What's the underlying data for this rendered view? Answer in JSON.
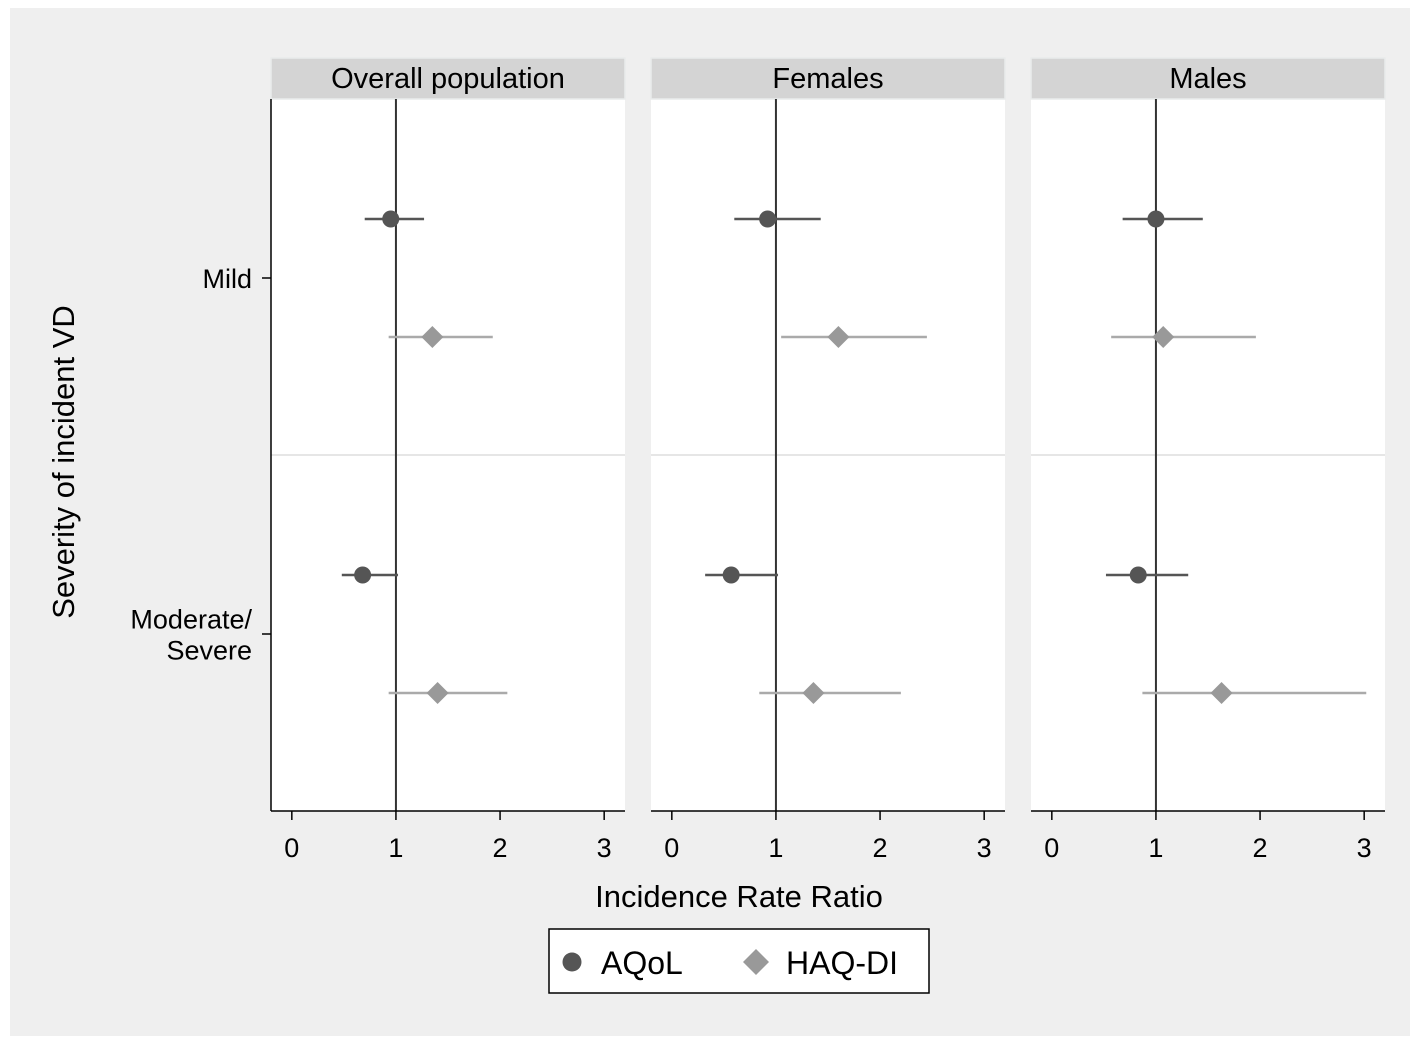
{
  "chart_data": {
    "type": "scatter",
    "subtype": "forest-plot",
    "xlabel": "Incidence Rate Ratio",
    "ylabel": "Severity of incident VD",
    "xlim": [
      -0.2,
      3.2
    ],
    "xticks": [
      "0",
      "1",
      "2",
      "3"
    ],
    "reference_line": 1,
    "categories": [
      "Mild",
      "Moderate/ Severe"
    ],
    "legend": {
      "position": "bottom",
      "items": [
        {
          "name": "AQoL",
          "marker": "circle",
          "color": "#555555"
        },
        {
          "name": "HAQ-DI",
          "marker": "diamond",
          "color": "#999999"
        }
      ]
    },
    "panels": [
      {
        "title": "Overall population",
        "points": [
          {
            "category": "Mild",
            "series": "AQoL",
            "est": 0.95,
            "lo": 0.7,
            "hi": 1.27
          },
          {
            "category": "Mild",
            "series": "HAQ-DI",
            "est": 1.35,
            "lo": 0.93,
            "hi": 1.93
          },
          {
            "category": "Moderate/ Severe",
            "series": "AQoL",
            "est": 0.68,
            "lo": 0.48,
            "hi": 1.02
          },
          {
            "category": "Moderate/ Severe",
            "series": "HAQ-DI",
            "est": 1.4,
            "lo": 0.93,
            "hi": 2.07
          }
        ]
      },
      {
        "title": "Females",
        "points": [
          {
            "category": "Mild",
            "series": "AQoL",
            "est": 0.92,
            "lo": 0.6,
            "hi": 1.43
          },
          {
            "category": "Mild",
            "series": "HAQ-DI",
            "est": 1.6,
            "lo": 1.05,
            "hi": 2.45
          },
          {
            "category": "Moderate/ Severe",
            "series": "AQoL",
            "est": 0.57,
            "lo": 0.32,
            "hi": 1.02
          },
          {
            "category": "Moderate/ Severe",
            "series": "HAQ-DI",
            "est": 1.36,
            "lo": 0.84,
            "hi": 2.2
          }
        ]
      },
      {
        "title": "Males",
        "points": [
          {
            "category": "Mild",
            "series": "AQoL",
            "est": 1.0,
            "lo": 0.68,
            "hi": 1.45
          },
          {
            "category": "Mild",
            "series": "HAQ-DI",
            "est": 1.07,
            "lo": 0.57,
            "hi": 1.96
          },
          {
            "category": "Moderate/ Severe",
            "series": "AQoL",
            "est": 0.83,
            "lo": 0.52,
            "hi": 1.31
          },
          {
            "category": "Moderate/ Severe",
            "series": "HAQ-DI",
            "est": 1.63,
            "lo": 0.87,
            "hi": 3.02
          }
        ]
      }
    ]
  }
}
